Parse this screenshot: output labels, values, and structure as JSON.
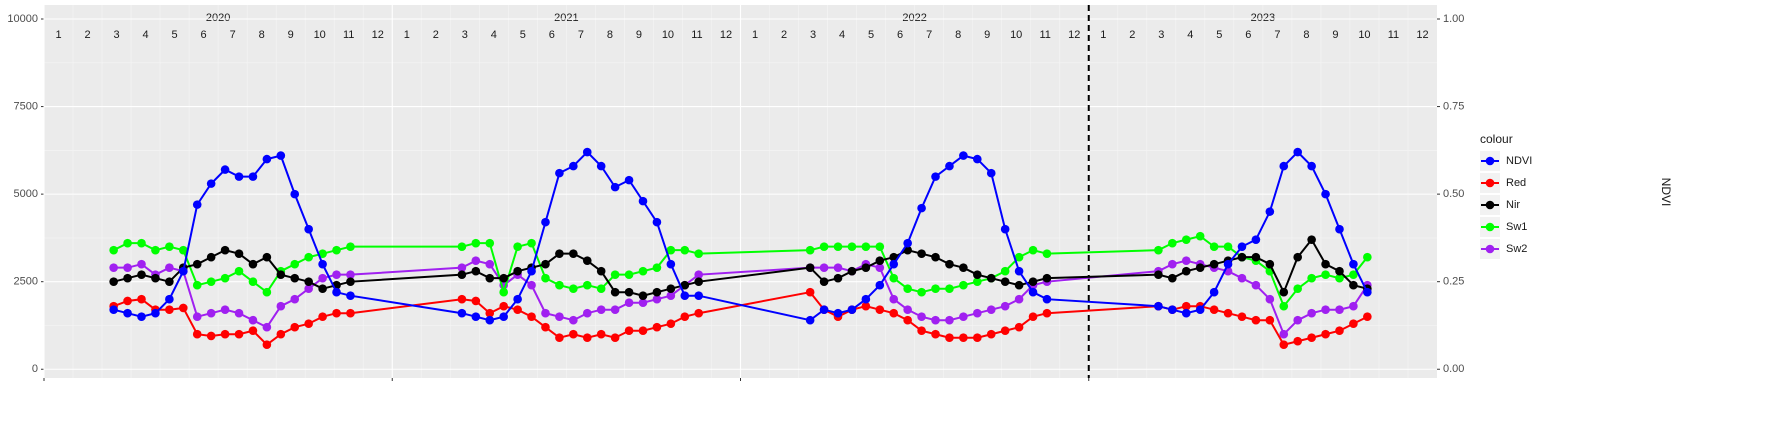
{
  "chart_data": {
    "type": "line",
    "years": [
      "2020",
      "2021",
      "2022",
      "2023"
    ],
    "months": [
      "1",
      "2",
      "3",
      "4",
      "5",
      "6",
      "7",
      "8",
      "9",
      "10",
      "11",
      "12"
    ],
    "x": [
      2020.2,
      2020.24,
      2020.28,
      2020.32,
      2020.36,
      2020.4,
      2020.44,
      2020.48,
      2020.52,
      2020.56,
      2020.6,
      2020.64,
      2020.68,
      2020.72,
      2020.76,
      2020.8,
      2020.84,
      2020.88,
      2021.2,
      2021.24,
      2021.28,
      2021.32,
      2021.36,
      2021.4,
      2021.44,
      2021.48,
      2021.52,
      2021.56,
      2021.6,
      2021.64,
      2021.68,
      2021.72,
      2021.76,
      2021.8,
      2021.84,
      2021.88,
      2022.2,
      2022.24,
      2022.28,
      2022.32,
      2022.36,
      2022.4,
      2022.44,
      2022.48,
      2022.52,
      2022.56,
      2022.6,
      2022.64,
      2022.68,
      2022.72,
      2022.76,
      2022.8,
      2022.84,
      2022.88,
      2023.2,
      2023.24,
      2023.28,
      2023.32,
      2023.36,
      2023.4,
      2023.44,
      2023.48,
      2023.52,
      2023.56,
      2023.6,
      2023.64,
      2023.68,
      2023.72,
      2023.76,
      2023.8
    ],
    "series": [
      {
        "name": "NDVI",
        "color": "#0000ff",
        "axis": "y2",
        "values": [
          0.17,
          0.16,
          0.15,
          0.16,
          0.2,
          0.28,
          0.47,
          0.53,
          0.57,
          0.55,
          0.55,
          0.6,
          0.61,
          0.5,
          0.4,
          0.3,
          0.22,
          0.21,
          0.16,
          0.15,
          0.14,
          0.15,
          0.2,
          0.28,
          0.42,
          0.56,
          0.58,
          0.62,
          0.58,
          0.52,
          0.54,
          0.48,
          0.42,
          0.3,
          0.21,
          0.21,
          0.14,
          0.17,
          0.16,
          0.17,
          0.2,
          0.24,
          0.3,
          0.36,
          0.46,
          0.55,
          0.58,
          0.61,
          0.6,
          0.56,
          0.4,
          0.28,
          0.22,
          0.2,
          0.18,
          0.17,
          0.16,
          0.17,
          0.22,
          0.3,
          0.35,
          0.37,
          0.45,
          0.58,
          0.62,
          0.58,
          0.5,
          0.4,
          0.3,
          0.22
        ]
      },
      {
        "name": "Red",
        "color": "#ff0000",
        "values": [
          1800,
          1950,
          2000,
          1700,
          1700,
          1750,
          1000,
          950,
          1000,
          1000,
          1100,
          700,
          1000,
          1200,
          1300,
          1500,
          1600,
          1600,
          2000,
          1950,
          1600,
          1800,
          1700,
          1500,
          1200,
          900,
          1000,
          900,
          1000,
          900,
          1100,
          1100,
          1200,
          1300,
          1500,
          1600,
          2200,
          1700,
          1500,
          1700,
          1800,
          1700,
          1600,
          1400,
          1100,
          1000,
          900,
          900,
          900,
          1000,
          1100,
          1200,
          1500,
          1600,
          1800,
          1700,
          1800,
          1800,
          1700,
          1600,
          1500,
          1400,
          1400,
          700,
          800,
          900,
          1000,
          1100,
          1300,
          1500
        ]
      },
      {
        "name": "Nir",
        "color": "#000000",
        "values": [
          2500,
          2600,
          2700,
          2600,
          2500,
          2900,
          3000,
          3200,
          3400,
          3300,
          3000,
          3200,
          2700,
          2600,
          2500,
          2300,
          2400,
          2500,
          2700,
          2800,
          2600,
          2600,
          2800,
          2900,
          3000,
          3300,
          3300,
          3100,
          2800,
          2200,
          2200,
          2100,
          2200,
          2300,
          2400,
          2500,
          2900,
          2500,
          2600,
          2800,
          2900,
          3100,
          3200,
          3400,
          3300,
          3200,
          3000,
          2900,
          2700,
          2600,
          2500,
          2400,
          2500,
          2600,
          2700,
          2600,
          2800,
          2900,
          3000,
          3100,
          3200,
          3200,
          3000,
          2200,
          3200,
          3700,
          3000,
          2800,
          2400,
          2300
        ]
      },
      {
        "name": "Sw1",
        "color": "#00ff00",
        "values": [
          3400,
          3600,
          3600,
          3400,
          3500,
          3400,
          2400,
          2500,
          2600,
          2800,
          2500,
          2200,
          2800,
          3000,
          3200,
          3300,
          3400,
          3500,
          3500,
          3600,
          3600,
          2200,
          3500,
          3600,
          2600,
          2400,
          2300,
          2400,
          2300,
          2700,
          2700,
          2800,
          2900,
          3400,
          3400,
          3300,
          3400,
          3500,
          3500,
          3500,
          3500,
          3500,
          2600,
          2300,
          2200,
          2300,
          2300,
          2400,
          2500,
          2600,
          2800,
          3200,
          3400,
          3300,
          3400,
          3600,
          3700,
          3800,
          3500,
          3500,
          3200,
          3100,
          2800,
          1800,
          2300,
          2600,
          2700,
          2600,
          2700,
          3200
        ]
      },
      {
        "name": "Sw2",
        "color": "#a020f0",
        "values": [
          2900,
          2900,
          3000,
          2700,
          2900,
          2800,
          1500,
          1600,
          1700,
          1600,
          1400,
          1200,
          1800,
          2000,
          2300,
          2600,
          2700,
          2700,
          2900,
          3100,
          3000,
          2400,
          2700,
          2400,
          1600,
          1500,
          1400,
          1600,
          1700,
          1700,
          1900,
          1900,
          2000,
          2100,
          2400,
          2700,
          2900,
          2900,
          2900,
          2800,
          3000,
          2900,
          2000,
          1700,
          1500,
          1400,
          1400,
          1500,
          1600,
          1700,
          1800,
          2000,
          2400,
          2500,
          2800,
          3000,
          3100,
          3000,
          2900,
          2800,
          2600,
          2400,
          2000,
          1000,
          1400,
          1600,
          1700,
          1700,
          1800,
          2400
        ]
      }
    ],
    "xlim": [
      2020,
      2024
    ],
    "xticks": [
      2020,
      2021,
      2022,
      2023
    ],
    "ylim": [
      -250,
      10400
    ],
    "yticks": [
      0,
      2500,
      5000,
      7500,
      10000
    ],
    "y2lim": [
      -0.025,
      1.04
    ],
    "y2ticks": [
      {
        "value": 0,
        "label": "0.00"
      },
      {
        "value": 0.25,
        "label": "0.25"
      },
      {
        "value": 0.5,
        "label": "0.50"
      },
      {
        "value": 0.75,
        "label": "0.75"
      },
      {
        "value": 1,
        "label": "1.00"
      }
    ],
    "y2label": "NDVI",
    "vline": 2023,
    "legend_title": "colour",
    "legend": "right",
    "grid": true
  }
}
